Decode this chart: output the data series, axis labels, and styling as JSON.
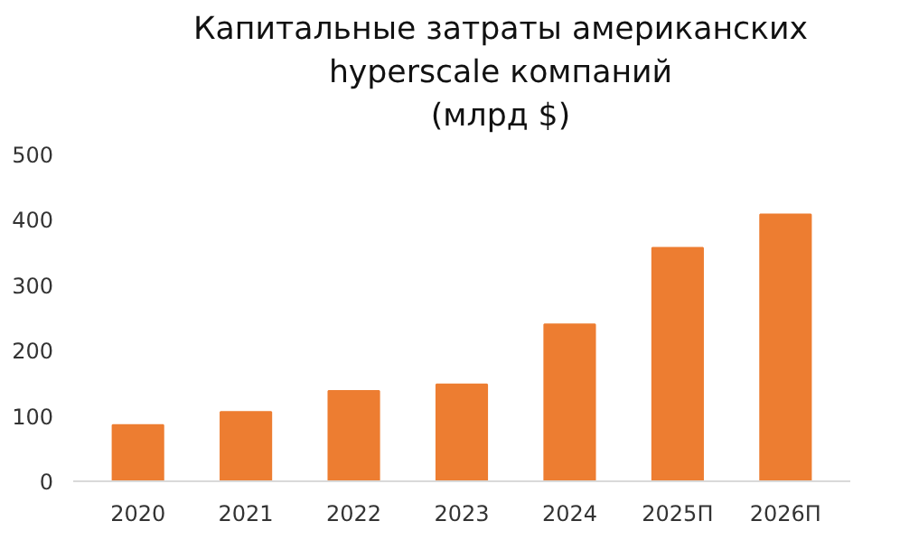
{
  "chart_data": {
    "type": "bar",
    "title": "Капитальные затраты американских\nhyperscale компаний\n(млрд $)",
    "categories": [
      "2020",
      "2021",
      "2022",
      "2023",
      "2024",
      "2025П",
      "2026П"
    ],
    "values": [
      86,
      106,
      138,
      148,
      240,
      357,
      408
    ],
    "color": "#ed7d31",
    "ylim": [
      0,
      500
    ],
    "yticks": [
      0,
      100,
      200,
      300,
      400,
      500
    ],
    "grid": false
  }
}
